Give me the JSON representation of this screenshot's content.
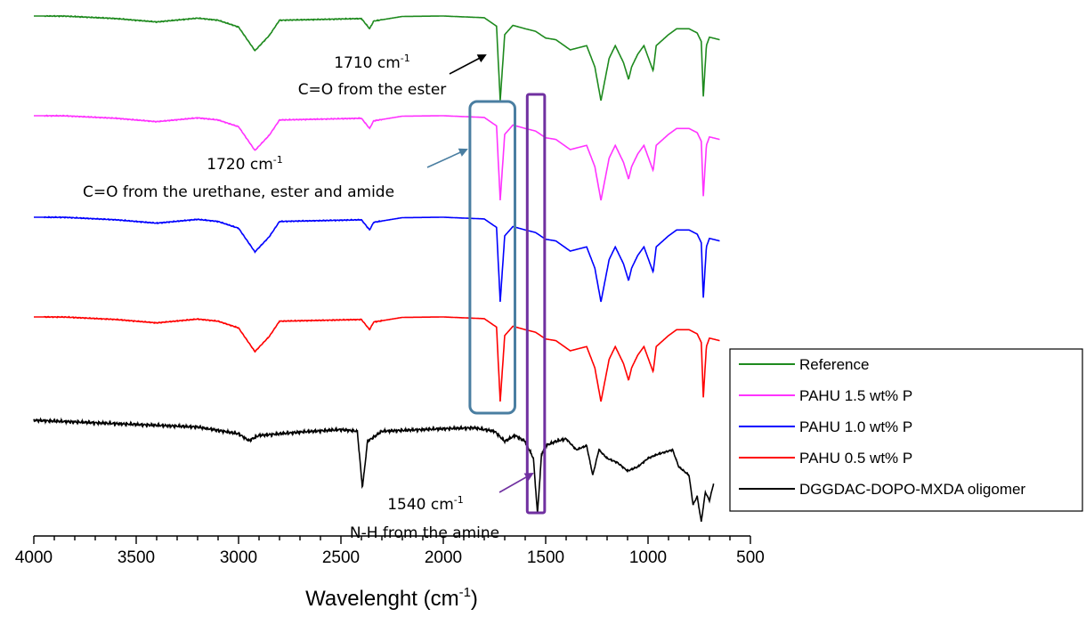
{
  "chart_data": {
    "type": "line",
    "title": "",
    "xlabel": "Wavelenght (cm-1)",
    "xlabel_main": "Wavelenght (cm",
    "xlabel_sup": "-1",
    "xlabel_close": ")",
    "ylabel": "",
    "xlim": [
      4000,
      500
    ],
    "x_ticks": [
      4000,
      3500,
      3000,
      2500,
      2000,
      1500,
      1000,
      500
    ],
    "y_axis_visible": false,
    "grid": false,
    "legend_position": "right",
    "series": [
      {
        "name": "Reference",
        "color": "#1e8a1e",
        "offset": 0,
        "points": [
          [
            4000,
            0
          ],
          [
            3850,
            0.01
          ],
          [
            3600,
            0.3
          ],
          [
            3400,
            0.7
          ],
          [
            3200,
            0.25
          ],
          [
            3100,
            0.5
          ],
          [
            3000,
            1.3
          ],
          [
            2920,
            4.1
          ],
          [
            2850,
            2.3
          ],
          [
            2800,
            0.5
          ],
          [
            2400,
            0.3
          ],
          [
            2360,
            1.5
          ],
          [
            2340,
            0.6
          ],
          [
            2200,
            0.05
          ],
          [
            2000,
            0
          ],
          [
            1800,
            0.2
          ],
          [
            1740,
            1.2
          ],
          [
            1722,
            10
          ],
          [
            1700,
            2.2
          ],
          [
            1660,
            1.1
          ],
          [
            1600,
            1.5
          ],
          [
            1550,
            1.8
          ],
          [
            1500,
            2.6
          ],
          [
            1450,
            2.8
          ],
          [
            1380,
            4.0
          ],
          [
            1300,
            3.5
          ],
          [
            1260,
            6.0
          ],
          [
            1230,
            10
          ],
          [
            1190,
            5.0
          ],
          [
            1160,
            3.5
          ],
          [
            1120,
            5.5
          ],
          [
            1095,
            7.5
          ],
          [
            1080,
            6.0
          ],
          [
            1050,
            4.5
          ],
          [
            1020,
            3.5
          ],
          [
            975,
            6.5
          ],
          [
            960,
            3.5
          ],
          [
            900,
            2.2
          ],
          [
            860,
            1.5
          ],
          [
            800,
            1.5
          ],
          [
            760,
            2.0
          ],
          [
            740,
            3.0
          ],
          [
            730,
            9.5
          ],
          [
            715,
            3.5
          ],
          [
            700,
            2.5
          ],
          [
            650,
            2.8
          ]
        ]
      },
      {
        "name": "PAHU 1.5 wt% P",
        "color": "#ff33ff",
        "offset": 1,
        "points": [
          [
            4000,
            0
          ],
          [
            3850,
            0.01
          ],
          [
            3600,
            0.3
          ],
          [
            3400,
            0.7
          ],
          [
            3200,
            0.25
          ],
          [
            3100,
            0.5
          ],
          [
            3000,
            1.3
          ],
          [
            2920,
            4.1
          ],
          [
            2850,
            2.3
          ],
          [
            2800,
            0.5
          ],
          [
            2400,
            0.3
          ],
          [
            2360,
            1.5
          ],
          [
            2340,
            0.6
          ],
          [
            2200,
            0.05
          ],
          [
            2000,
            0
          ],
          [
            1800,
            0.2
          ],
          [
            1740,
            1.2
          ],
          [
            1722,
            10
          ],
          [
            1700,
            2.2
          ],
          [
            1660,
            1.1
          ],
          [
            1600,
            1.5
          ],
          [
            1550,
            1.8
          ],
          [
            1500,
            2.6
          ],
          [
            1450,
            2.8
          ],
          [
            1380,
            4.0
          ],
          [
            1300,
            3.5
          ],
          [
            1260,
            6.0
          ],
          [
            1230,
            10
          ],
          [
            1190,
            5.0
          ],
          [
            1160,
            3.5
          ],
          [
            1120,
            5.5
          ],
          [
            1095,
            7.5
          ],
          [
            1080,
            6.0
          ],
          [
            1050,
            4.5
          ],
          [
            1020,
            3.5
          ],
          [
            975,
            6.5
          ],
          [
            960,
            3.5
          ],
          [
            900,
            2.2
          ],
          [
            860,
            1.5
          ],
          [
            800,
            1.5
          ],
          [
            760,
            2.0
          ],
          [
            740,
            3.0
          ],
          [
            730,
            9.5
          ],
          [
            715,
            3.5
          ],
          [
            700,
            2.5
          ],
          [
            650,
            2.8
          ]
        ]
      },
      {
        "name": "PAHU 1.0 wt% P",
        "color": "#0000ff",
        "offset": 2,
        "points": [
          [
            4000,
            0
          ],
          [
            3850,
            0.01
          ],
          [
            3600,
            0.3
          ],
          [
            3400,
            0.7
          ],
          [
            3200,
            0.25
          ],
          [
            3100,
            0.5
          ],
          [
            3000,
            1.3
          ],
          [
            2920,
            4.1
          ],
          [
            2850,
            2.3
          ],
          [
            2800,
            0.5
          ],
          [
            2400,
            0.3
          ],
          [
            2360,
            1.5
          ],
          [
            2340,
            0.6
          ],
          [
            2200,
            0.05
          ],
          [
            2000,
            0
          ],
          [
            1800,
            0.2
          ],
          [
            1740,
            1.2
          ],
          [
            1722,
            10
          ],
          [
            1700,
            2.2
          ],
          [
            1660,
            1.1
          ],
          [
            1600,
            1.5
          ],
          [
            1550,
            1.8
          ],
          [
            1500,
            2.6
          ],
          [
            1450,
            2.8
          ],
          [
            1380,
            4.0
          ],
          [
            1300,
            3.5
          ],
          [
            1260,
            6.0
          ],
          [
            1230,
            10
          ],
          [
            1190,
            5.0
          ],
          [
            1160,
            3.5
          ],
          [
            1120,
            5.5
          ],
          [
            1095,
            7.5
          ],
          [
            1080,
            6.0
          ],
          [
            1050,
            4.5
          ],
          [
            1020,
            3.5
          ],
          [
            975,
            6.5
          ],
          [
            960,
            3.5
          ],
          [
            900,
            2.2
          ],
          [
            860,
            1.5
          ],
          [
            800,
            1.5
          ],
          [
            760,
            2.0
          ],
          [
            740,
            3.0
          ],
          [
            730,
            9.5
          ],
          [
            715,
            3.5
          ],
          [
            700,
            2.5
          ],
          [
            650,
            2.8
          ]
        ]
      },
      {
        "name": "PAHU 0.5 wt% P",
        "color": "#ff0000",
        "offset": 3,
        "points": [
          [
            4000,
            0
          ],
          [
            3850,
            0.01
          ],
          [
            3600,
            0.3
          ],
          [
            3400,
            0.7
          ],
          [
            3200,
            0.25
          ],
          [
            3100,
            0.5
          ],
          [
            3000,
            1.3
          ],
          [
            2920,
            4.1
          ],
          [
            2850,
            2.3
          ],
          [
            2800,
            0.5
          ],
          [
            2400,
            0.3
          ],
          [
            2360,
            1.5
          ],
          [
            2340,
            0.6
          ],
          [
            2200,
            0.05
          ],
          [
            2000,
            0
          ],
          [
            1800,
            0.2
          ],
          [
            1740,
            1.2
          ],
          [
            1722,
            10
          ],
          [
            1700,
            2.2
          ],
          [
            1660,
            1.1
          ],
          [
            1600,
            1.5
          ],
          [
            1550,
            1.8
          ],
          [
            1500,
            2.6
          ],
          [
            1450,
            2.8
          ],
          [
            1380,
            4.0
          ],
          [
            1300,
            3.5
          ],
          [
            1260,
            6.0
          ],
          [
            1230,
            10
          ],
          [
            1190,
            5.0
          ],
          [
            1160,
            3.5
          ],
          [
            1120,
            5.5
          ],
          [
            1095,
            7.5
          ],
          [
            1080,
            6.0
          ],
          [
            1050,
            4.5
          ],
          [
            1020,
            3.5
          ],
          [
            975,
            6.5
          ],
          [
            960,
            3.5
          ],
          [
            900,
            2.2
          ],
          [
            860,
            1.5
          ],
          [
            800,
            1.5
          ],
          [
            760,
            2.0
          ],
          [
            740,
            3.0
          ],
          [
            730,
            9.5
          ],
          [
            715,
            3.5
          ],
          [
            700,
            2.5
          ],
          [
            650,
            2.8
          ]
        ]
      },
      {
        "name": "DGGDAC-DOPO-MXDA oligomer",
        "color": "#000000",
        "offset": 4,
        "points": [
          [
            4000,
            0
          ],
          [
            3700,
            0.3
          ],
          [
            3400,
            0.6
          ],
          [
            3200,
            0.8
          ],
          [
            3000,
            1.6
          ],
          [
            2950,
            2.4
          ],
          [
            2900,
            1.8
          ],
          [
            2700,
            1.4
          ],
          [
            2500,
            1.1
          ],
          [
            2420,
            1.3
          ],
          [
            2395,
            8.0
          ],
          [
            2370,
            2.5
          ],
          [
            2300,
            1.3
          ],
          [
            2000,
            1.0
          ],
          [
            1850,
            0.9
          ],
          [
            1750,
            1.3
          ],
          [
            1700,
            2.5
          ],
          [
            1650,
            1.8
          ],
          [
            1600,
            2.5
          ],
          [
            1560,
            4.5
          ],
          [
            1540,
            11
          ],
          [
            1520,
            4.0
          ],
          [
            1500,
            3.0
          ],
          [
            1450,
            2.5
          ],
          [
            1400,
            2.2
          ],
          [
            1350,
            3.5
          ],
          [
            1300,
            3.0
          ],
          [
            1270,
            6.5
          ],
          [
            1240,
            3.5
          ],
          [
            1200,
            4.5
          ],
          [
            1150,
            5.0
          ],
          [
            1100,
            6.0
          ],
          [
            1050,
            5.5
          ],
          [
            1000,
            4.5
          ],
          [
            950,
            4.0
          ],
          [
            880,
            3.5
          ],
          [
            850,
            5.5
          ],
          [
            800,
            6.5
          ],
          [
            780,
            10
          ],
          [
            760,
            9
          ],
          [
            740,
            12
          ],
          [
            720,
            8.5
          ],
          [
            700,
            9.5
          ],
          [
            680,
            7.5
          ]
        ]
      }
    ],
    "annotations": [
      {
        "value": "1710",
        "unit_main": " cm",
        "unit_sup": "-1",
        "desc": "C=O from the ester",
        "color": "#000000"
      },
      {
        "value": "1720",
        "unit_main": " cm",
        "unit_sup": "-1",
        "desc": "C=O from the urethane, ester and amide",
        "color": "#4a7ea1"
      },
      {
        "value": "1540",
        "unit_main": " cm",
        "unit_sup": "-1",
        "desc": "N-H from the amine",
        "color": "#7030a0"
      }
    ],
    "highlight_boxes": [
      {
        "name": "C=O region",
        "color": "#4a7ea1",
        "x_range": [
          1870,
          1650
        ]
      },
      {
        "name": "N-H region",
        "color": "#7030a0",
        "x_range": [
          1590,
          1505
        ]
      }
    ]
  }
}
